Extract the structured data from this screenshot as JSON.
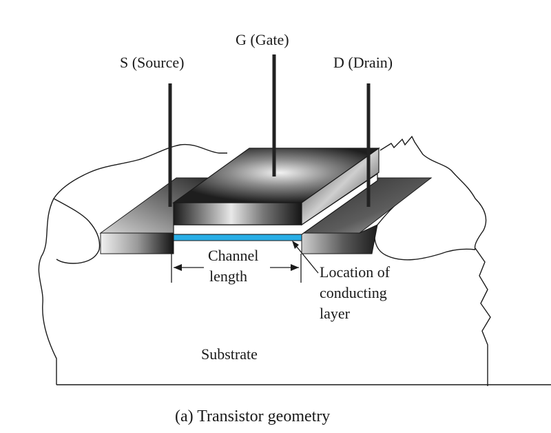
{
  "labels": {
    "source": "S (Source)",
    "gate": "G (Gate)",
    "drain": "D (Drain)",
    "channel_line1": "Channel",
    "channel_line2": "length",
    "location_line1": "Location of",
    "location_line2": "conducting",
    "location_line3": "layer",
    "substrate": "Substrate"
  },
  "caption": "(a) Transistor geometry",
  "colors": {
    "conducting_layer": "#29aee6",
    "terminal": "#222222",
    "outline": "#1a1a1a"
  }
}
